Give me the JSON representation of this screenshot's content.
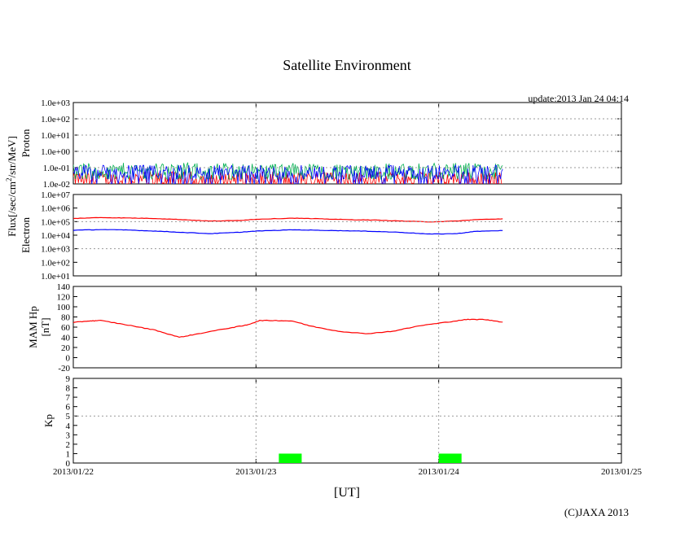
{
  "title": "Satellite Environment",
  "update": "update:2013 Jan 24 04:14",
  "copyright": "(C)JAXA 2013",
  "xlabel": "[UT]",
  "flux_label_main": "Flux[/sec/cm",
  "flux_label_sup": "2",
  "flux_label_rest": "/str/MeV]",
  "colors": {
    "red": "#ff0000",
    "blue": "#0000ff",
    "green": "#00b050",
    "kp": "#00ff00",
    "grid": "#999999"
  },
  "chart_data": [
    {
      "type": "line",
      "name": "proton",
      "ylabel": "Proton",
      "yscale": "log",
      "ylim": [
        0.01,
        1000
      ],
      "ytick_labels": [
        "1.0e-02",
        "1.0e-01",
        "1.0e+00",
        "1.0e+01",
        "1.0e+02",
        "1.0e+03"
      ],
      "x_range_days": [
        0,
        2.35
      ],
      "series": [
        {
          "name": "red",
          "typical": 0.02,
          "noise_low": 0.01,
          "noise_high": 0.05
        },
        {
          "name": "green",
          "typical": 0.07,
          "noise_low": 0.02,
          "noise_high": 0.12
        },
        {
          "name": "blue",
          "typical": 0.05,
          "noise_low": 0.01,
          "noise_high": 0.14
        }
      ]
    },
    {
      "type": "line",
      "name": "electron",
      "ylabel": "Electron",
      "yscale": "log",
      "ylim": [
        10,
        10000000
      ],
      "ytick_labels": [
        "1.0e+01",
        "1.0e+02",
        "1.0e+03",
        "1.0e+04",
        "1.0e+05",
        "1.0e+06",
        "1.0e+07"
      ],
      "series": [
        {
          "name": "red",
          "x": [
            0,
            0.15,
            0.3,
            0.45,
            0.6,
            0.75,
            0.9,
            1.0,
            1.2,
            1.35,
            1.5,
            1.65,
            1.8,
            1.95,
            2.1,
            2.2,
            2.35
          ],
          "y": [
            170000,
            200000,
            185000,
            170000,
            140000,
            110000,
            120000,
            150000,
            180000,
            160000,
            140000,
            130000,
            110000,
            95000,
            110000,
            140000,
            160000
          ]
        },
        {
          "name": "blue",
          "x": [
            0,
            0.15,
            0.3,
            0.45,
            0.6,
            0.75,
            0.9,
            1.0,
            1.2,
            1.35,
            1.5,
            1.65,
            1.8,
            1.95,
            2.1,
            2.2,
            2.35
          ],
          "y": [
            23000,
            26000,
            24000,
            20000,
            16000,
            13000,
            16000,
            20000,
            25000,
            23000,
            21000,
            19000,
            16000,
            12000,
            13000,
            19000,
            22000
          ]
        }
      ]
    },
    {
      "type": "line",
      "name": "mam-hp",
      "ylabel_line1": "MAM Hp",
      "ylabel_line2": "[nT]",
      "ylim": [
        -20,
        140
      ],
      "ytick_labels": [
        "-20",
        "0",
        "20",
        "40",
        "60",
        "80",
        "100",
        "120",
        "140"
      ],
      "series": [
        {
          "name": "red",
          "x": [
            0,
            0.08,
            0.15,
            0.3,
            0.45,
            0.58,
            0.7,
            0.85,
            0.95,
            1.02,
            1.1,
            1.2,
            1.3,
            1.45,
            1.6,
            1.75,
            1.9,
            2.05,
            2.15,
            2.25,
            2.35
          ],
          "y": [
            69,
            72,
            73,
            64,
            54,
            40,
            48,
            58,
            64,
            73,
            73,
            72,
            62,
            52,
            47,
            52,
            63,
            70,
            75,
            75,
            70
          ]
        }
      ]
    },
    {
      "type": "bar",
      "name": "kp",
      "ylabel": "Kp",
      "ylim": [
        0,
        9
      ],
      "ytick_labels": [
        "0",
        "1",
        "2",
        "3",
        "4",
        "5",
        "6",
        "7",
        "8",
        "9"
      ],
      "bars": [
        {
          "x_start": 1.125,
          "x_end": 1.25,
          "value": 1
        },
        {
          "x_start": 2.0,
          "x_end": 2.125,
          "value": 1
        }
      ]
    }
  ],
  "x_axis": {
    "range_days": [
      0,
      3
    ],
    "tick_labels": [
      "2013/01/22",
      "2013/01/23",
      "2013/01/24",
      "2013/01/25"
    ]
  }
}
